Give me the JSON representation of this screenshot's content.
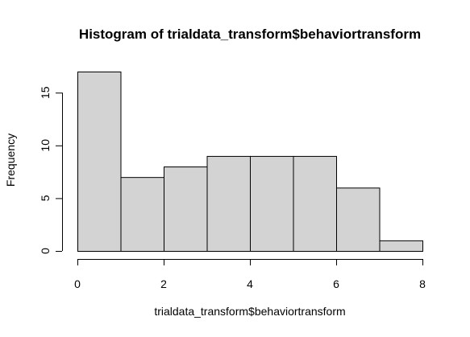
{
  "chart_data": {
    "type": "bar",
    "title": "Histogram of trialdata_transform$behaviortransform",
    "xlabel": "trialdata_transform$behaviortransform",
    "ylabel": "Frequency",
    "bins": [
      {
        "x0": 0,
        "x1": 1,
        "count": 17
      },
      {
        "x0": 1,
        "x1": 2,
        "count": 7
      },
      {
        "x0": 2,
        "x1": 3,
        "count": 8
      },
      {
        "x0": 3,
        "x1": 4,
        "count": 9
      },
      {
        "x0": 4,
        "x1": 5,
        "count": 9
      },
      {
        "x0": 5,
        "x1": 6,
        "count": 9
      },
      {
        "x0": 6,
        "x1": 7,
        "count": 6
      },
      {
        "x0": 7,
        "x1": 8,
        "count": 1
      }
    ],
    "xlim": [
      0,
      8
    ],
    "ylim": [
      0,
      17
    ],
    "x_ticks": [
      "0",
      "2",
      "4",
      "6",
      "8"
    ],
    "y_ticks": [
      "0",
      "5",
      "10",
      "15"
    ],
    "bar_color": "#d3d3d3",
    "grid": false,
    "legend": "none"
  }
}
